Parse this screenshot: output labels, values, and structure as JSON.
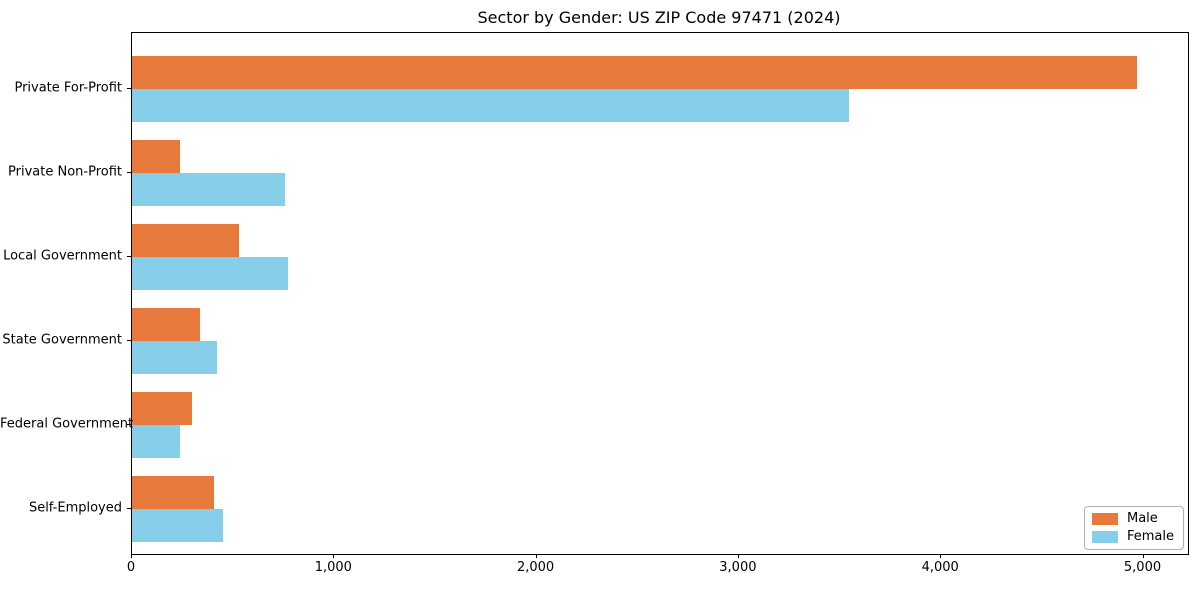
{
  "chart_data": {
    "type": "bar",
    "orientation": "horizontal",
    "title": "Sector by Gender: US ZIP Code 97471 (2024)",
    "categories": [
      "Private For-Profit",
      "Private Non-Profit",
      "Local Government",
      "State Government",
      "Federal Government",
      "Self-Employed"
    ],
    "series": [
      {
        "name": "Male",
        "color": "#e8793d",
        "values": [
          4970,
          237,
          531,
          334,
          297,
          407
        ]
      },
      {
        "name": "Female",
        "color": "#87ceeb",
        "values": [
          3546,
          757,
          771,
          420,
          235,
          449
        ]
      }
    ],
    "xlim": [
      0,
      5220
    ],
    "xticks": {
      "values": [
        0,
        1000,
        2000,
        3000,
        4000,
        5000
      ],
      "labels": [
        "0",
        "1,000",
        "2,000",
        "3,000",
        "4,000",
        "5,000"
      ]
    },
    "xlabel": "",
    "ylabel": "",
    "grid": false,
    "legend": {
      "position": "lower right",
      "entries": [
        "Male",
        "Female"
      ]
    }
  }
}
